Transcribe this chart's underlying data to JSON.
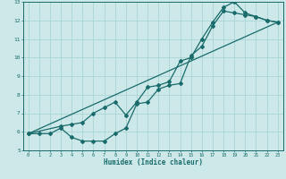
{
  "xlabel": "Humidex (Indice chaleur)",
  "xlim": [
    -0.5,
    23.5
  ],
  "ylim": [
    5,
    13
  ],
  "xticks": [
    0,
    1,
    2,
    3,
    4,
    5,
    6,
    7,
    8,
    9,
    10,
    11,
    12,
    13,
    14,
    15,
    16,
    17,
    18,
    19,
    20,
    21,
    22,
    23
  ],
  "yticks": [
    5,
    6,
    7,
    8,
    9,
    10,
    11,
    12,
    13
  ],
  "bg_color": "#cce8e8",
  "grid_color": "#aad4d4",
  "line_color": "#1a6b6b",
  "curve1_x": [
    0,
    1,
    2,
    3,
    4,
    5,
    6,
    7,
    8,
    9,
    10,
    11,
    12,
    13,
    14,
    15,
    16,
    17,
    18,
    19,
    20,
    21,
    22,
    23
  ],
  "curve1_y": [
    5.9,
    5.9,
    5.9,
    6.2,
    5.7,
    5.5,
    5.5,
    5.5,
    5.9,
    6.2,
    7.5,
    7.6,
    8.3,
    8.5,
    8.6,
    10.1,
    10.6,
    11.7,
    12.5,
    12.4,
    12.3,
    12.2,
    12.0,
    11.9
  ],
  "curve2_x": [
    0,
    3,
    4,
    5,
    6,
    7,
    8,
    9,
    10,
    11,
    12,
    13,
    14,
    15,
    16,
    17,
    18,
    19,
    20,
    21,
    22,
    23
  ],
  "curve2_y": [
    5.9,
    6.3,
    6.4,
    6.5,
    7.0,
    7.3,
    7.6,
    6.9,
    7.6,
    8.4,
    8.5,
    8.7,
    9.8,
    10.0,
    11.0,
    11.9,
    12.7,
    13.0,
    12.4,
    12.2,
    12.0,
    11.9
  ],
  "curve3_x": [
    0,
    23
  ],
  "curve3_y": [
    5.9,
    11.9
  ]
}
